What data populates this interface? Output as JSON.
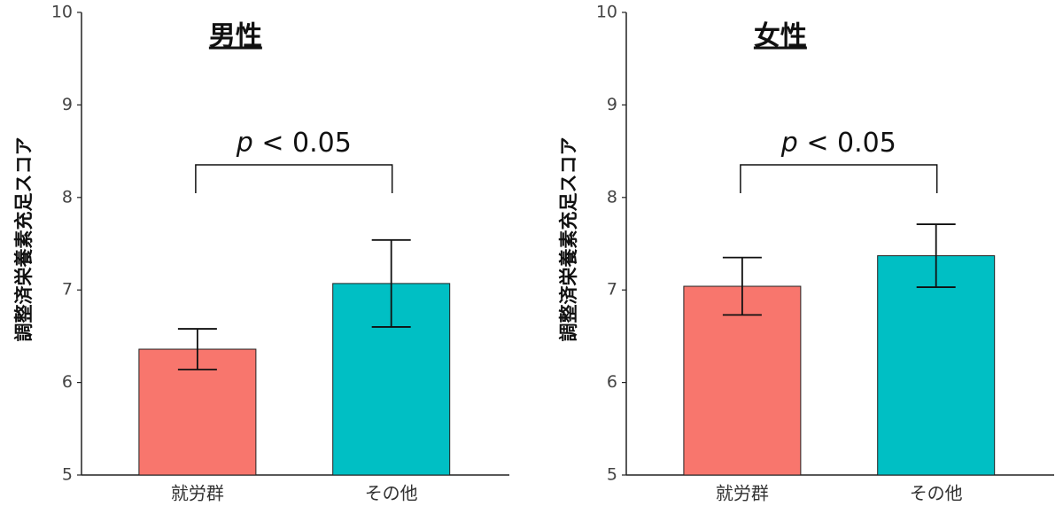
{
  "chart_data": [
    {
      "type": "bar",
      "title": "男性",
      "ylabel": "調整済栄養素充足スコア",
      "categories": [
        "就労群",
        "その他"
      ],
      "values": [
        6.36,
        7.07
      ],
      "errors": [
        0.22,
        0.47
      ],
      "colors": [
        "#f8766d",
        "#00bfc4"
      ],
      "ylim": [
        5,
        10
      ],
      "yticks": [
        5,
        6,
        7,
        8,
        9,
        10
      ],
      "annotation": "p < 0.05"
    },
    {
      "type": "bar",
      "title": "女性",
      "ylabel": "調整済栄養素充足スコア",
      "categories": [
        "就労群",
        "その他"
      ],
      "values": [
        7.04,
        7.37
      ],
      "errors": [
        0.31,
        0.34
      ],
      "colors": [
        "#f8766d",
        "#00bfc4"
      ],
      "ylim": [
        5,
        10
      ],
      "yticks": [
        5,
        6,
        7,
        8,
        9,
        10
      ],
      "annotation": "p < 0.05"
    }
  ]
}
